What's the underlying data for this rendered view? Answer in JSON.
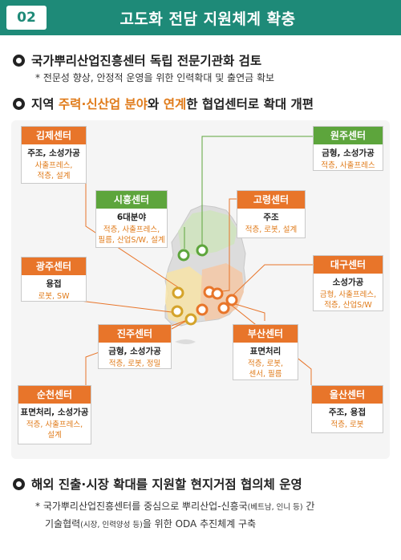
{
  "header": {
    "number": "02",
    "title": "고도화 전담 지원체계 확충"
  },
  "bullet1": {
    "text": "국가뿌리산업진흥센터 독립 전문기관화 검토",
    "note": "*  전문성 향상, 안정적 운영을 위한 인력확대 및 출연금 확보"
  },
  "bullet2": {
    "part1": "지역 ",
    "highlight1": "주력·신산업 분야",
    "part2": "와 ",
    "highlight2": "연계",
    "part3": "한 협업센터로 확대 개편"
  },
  "centers": {
    "gimje": {
      "name": "김제센터",
      "main": "주조, 소성가공",
      "sub1": "사출프레스,",
      "sub2": "적층, 설계"
    },
    "siheung": {
      "name": "시흥센터",
      "main": "6대분야",
      "sub1": "적층, 사출프레스,",
      "sub2": "필름, 산업S/W, 설계"
    },
    "wonju": {
      "name": "원주센터",
      "main": "금형, 소성가공",
      "sub1": "적층, 사출프레스"
    },
    "goryeong": {
      "name": "고령센터",
      "main": "주조",
      "sub1": "적층, 로봇, 설계"
    },
    "gwangju": {
      "name": "광주센터",
      "main": "용접",
      "sub1": "로봇, SW"
    },
    "daegu": {
      "name": "대구센터",
      "main": "소성가공",
      "sub1": "금형, 사출프레스,",
      "sub2": "적층, 산업S/W"
    },
    "jinju": {
      "name": "진주센터",
      "main": "금형, 소성가공",
      "sub1": "적층, 로봇, 정밀"
    },
    "busan": {
      "name": "부산센터",
      "main": "표면처리",
      "sub1": "적층, 로봇,",
      "sub2": "센서, 필름"
    },
    "suncheon": {
      "name": "순천센터",
      "main": "표면처리, 소성가공",
      "sub1": "적층, 사출프레스,",
      "sub2": "설계"
    },
    "ulsan": {
      "name": "울산센터",
      "main": "주조, 용접",
      "sub1": "적층, 로봇"
    }
  },
  "bullet3": {
    "text": "해외 진출·시장 확대를 지원할 현지거점 협의체 운영",
    "note_line1": "* 국가뿌리산업진흥센터를 중심으로 뿌리산업-신흥국",
    "note_line1_small": "(베트남, 인니 등)",
    "note_line1_end": " 간",
    "note_line2": "기술협력",
    "note_line2_small": "(시장, 인력양성 등)",
    "note_line2_end": "을 위한  ODA 추진체계 구축"
  },
  "colors": {
    "header": "#1e8a78",
    "orange": "#e8752a",
    "green": "#5da53c",
    "highlight": "#e07b1a"
  }
}
